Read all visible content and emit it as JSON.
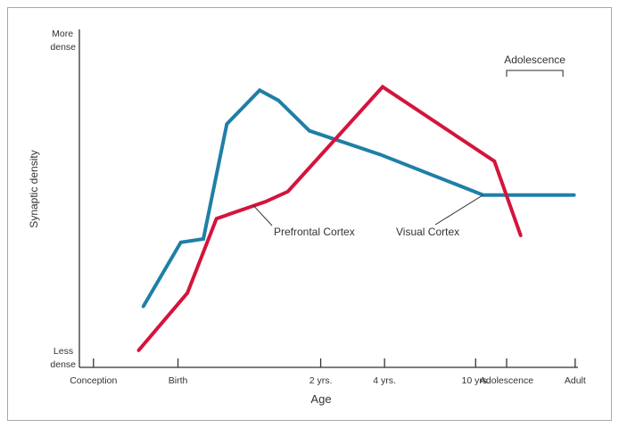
{
  "chart_data": {
    "type": "line",
    "title": "",
    "xlabel": "Age",
    "ylabel": "Synaptic density",
    "y_tick_labels": [
      {
        "id": "top",
        "lines": [
          "More",
          "dense"
        ]
      },
      {
        "id": "bottom",
        "lines": [
          "Less",
          "dense"
        ]
      }
    ],
    "x_ticks": [
      {
        "label": "Conception",
        "x": 0
      },
      {
        "label": "Birth",
        "x": 0.9
      },
      {
        "label": "2 yrs.",
        "x": 2.42
      },
      {
        "label": "4 yrs.",
        "x": 3.1
      },
      {
        "label": "10 yrs.",
        "x": 4.07
      },
      {
        "label": "Adolescence",
        "x": 4.4
      },
      {
        "label": "Adult",
        "x": 5.13
      }
    ],
    "xlim": [
      -0.15,
      5.16
    ],
    "ylim": [
      0,
      1
    ],
    "grid": false,
    "bracket": {
      "label": "Adolescence",
      "x_start": 4.4,
      "x_end": 5.0
    },
    "series": [
      {
        "name": "Visual Cortex",
        "color": "#1f7fa6",
        "points": [
          [
            0.53,
            0.18
          ],
          [
            0.93,
            0.37
          ],
          [
            1.17,
            0.38
          ],
          [
            1.42,
            0.72
          ],
          [
            1.77,
            0.82
          ],
          [
            1.97,
            0.79
          ],
          [
            2.3,
            0.7
          ],
          [
            3.05,
            0.63
          ],
          [
            4.15,
            0.51
          ],
          [
            5.12,
            0.51
          ]
        ],
        "label_anchor": [
          4.15,
          0.51
        ]
      },
      {
        "name": "Prefrontal Cortex",
        "color": "#d4143c",
        "points": [
          [
            0.48,
            0.05
          ],
          [
            1.0,
            0.22
          ],
          [
            1.31,
            0.44
          ],
          [
            1.83,
            0.49
          ],
          [
            2.07,
            0.52
          ],
          [
            3.08,
            0.83
          ],
          [
            4.27,
            0.61
          ],
          [
            4.55,
            0.39
          ]
        ],
        "label_anchor": [
          1.7,
          0.48
        ]
      }
    ]
  }
}
